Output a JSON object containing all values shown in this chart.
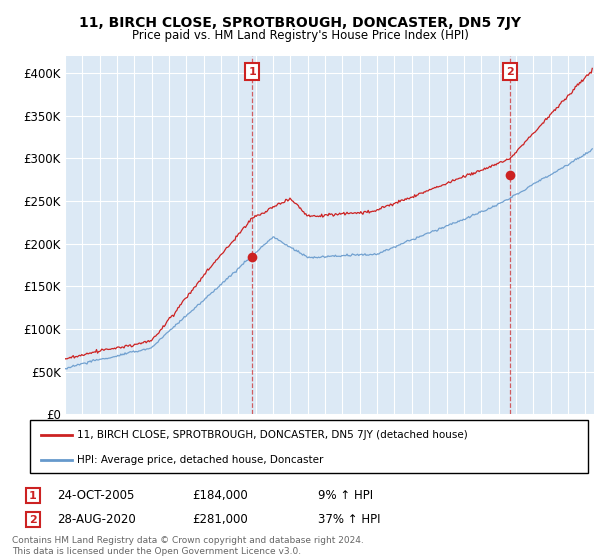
{
  "title": "11, BIRCH CLOSE, SPROTBROUGH, DONCASTER, DN5 7JY",
  "subtitle": "Price paid vs. HM Land Registry's House Price Index (HPI)",
  "ylim": [
    0,
    420000
  ],
  "yticks": [
    0,
    50000,
    100000,
    150000,
    200000,
    250000,
    300000,
    350000,
    400000
  ],
  "ytick_labels": [
    "£0",
    "£50K",
    "£100K",
    "£150K",
    "£200K",
    "£250K",
    "£300K",
    "£350K",
    "£400K"
  ],
  "background_color": "#ffffff",
  "plot_bg_color": "#dce9f5",
  "grid_color": "#ffffff",
  "hpi_color": "#6699cc",
  "price_color": "#cc2222",
  "sale1_year": 2005.8,
  "sale1_price": 184000,
  "sale2_year": 2020.65,
  "sale2_price": 281000,
  "legend_label1": "11, BIRCH CLOSE, SPROTBROUGH, DONCASTER, DN5 7JY (detached house)",
  "legend_label2": "HPI: Average price, detached house, Doncaster",
  "sale1_date": "24-OCT-2005",
  "sale1_pct": "9% ↑ HPI",
  "sale2_date": "28-AUG-2020",
  "sale2_pct": "37% ↑ HPI",
  "footnote": "Contains HM Land Registry data © Crown copyright and database right 2024.\nThis data is licensed under the Open Government Licence v3.0.",
  "xmin": 1995,
  "xmax": 2025.5
}
